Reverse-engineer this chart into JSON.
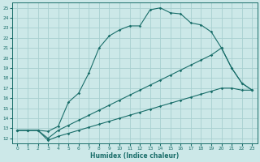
{
  "xlabel": "Humidex (Indice chaleur)",
  "background_color": "#cce8e8",
  "grid_color": "#a8d0d0",
  "line_color": "#1a6e6a",
  "xlim": [
    -0.5,
    23.5
  ],
  "ylim": [
    11.5,
    25.5
  ],
  "xticks": [
    0,
    1,
    2,
    3,
    4,
    5,
    6,
    7,
    8,
    9,
    10,
    11,
    12,
    13,
    14,
    15,
    16,
    17,
    18,
    19,
    20,
    21,
    22,
    23
  ],
  "yticks": [
    12,
    13,
    14,
    15,
    16,
    17,
    18,
    19,
    20,
    21,
    22,
    23,
    24,
    25
  ],
  "line1_x": [
    0,
    1,
    2,
    3,
    4,
    5,
    6,
    7,
    8,
    9,
    10,
    11,
    12,
    13,
    14,
    15,
    16,
    17,
    18,
    19,
    20,
    21,
    22,
    23
  ],
  "line1_y": [
    12.8,
    12.8,
    12.8,
    12.7,
    13.2,
    15.6,
    16.5,
    18.5,
    21.0,
    22.2,
    22.8,
    23.2,
    23.2,
    24.8,
    25.0,
    24.5,
    24.4,
    23.5,
    23.3,
    22.6,
    21.0,
    19.0,
    17.5,
    16.8
  ],
  "line2_x": [
    0,
    1,
    2,
    3,
    4,
    5,
    6,
    7,
    8,
    9,
    10,
    11,
    12,
    13,
    14,
    15,
    16,
    17,
    18,
    19,
    20,
    21,
    22,
    23
  ],
  "line2_y": [
    12.8,
    12.8,
    12.8,
    12.0,
    12.8,
    13.3,
    13.8,
    14.3,
    14.8,
    15.3,
    15.8,
    16.3,
    16.8,
    17.3,
    17.8,
    18.3,
    18.8,
    19.3,
    19.8,
    20.3,
    21.0,
    19.0,
    17.5,
    16.8
  ],
  "line3_x": [
    0,
    1,
    2,
    3,
    4,
    5,
    6,
    7,
    8,
    9,
    10,
    11,
    12,
    13,
    14,
    15,
    16,
    17,
    18,
    19,
    20,
    21,
    22,
    23
  ],
  "line3_y": [
    12.8,
    12.8,
    12.8,
    11.8,
    12.2,
    12.5,
    12.8,
    13.1,
    13.4,
    13.7,
    14.0,
    14.3,
    14.6,
    14.9,
    15.2,
    15.5,
    15.8,
    16.1,
    16.4,
    16.7,
    17.0,
    17.0,
    16.8,
    16.8
  ],
  "xlabel_fontsize": 5.5,
  "tick_fontsize": 4.2,
  "linewidth": 0.8,
  "markersize": 1.8
}
